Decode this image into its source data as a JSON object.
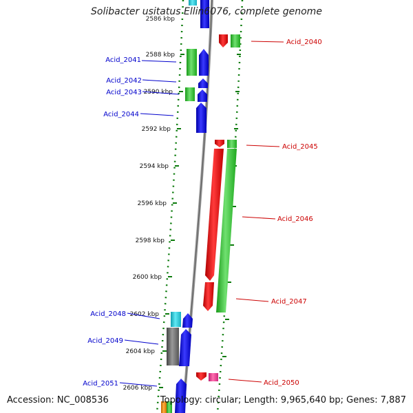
{
  "title": "Solibacter usitatus Ellin6076, complete genome",
  "top_partial_label": "2586 kbp",
  "footer": {
    "accession": "Accession: NC_008536",
    "summary": "Topology: circular; Length: 9,965,640 bp; Genes: 7,887"
  },
  "colors": {
    "red": "#e60000",
    "green": "#2fbf2f",
    "blue": "#0000e6",
    "cyan": "#20c8d8",
    "gray": "#666666",
    "pink": "#e83c8c",
    "orange": "#f08c00",
    "axis": "#888888",
    "tick": "#0a7a0a",
    "label_left": "#0000cc",
    "label_right": "#cc0000"
  },
  "ruler_labels": [
    "2588 kbp",
    "2590 kbp",
    "2592 kbp",
    "2594 kbp",
    "2596 kbp",
    "2598 kbp",
    "2600 kbp",
    "2602 kbp",
    "2604 kbp",
    "2606 kbp"
  ],
  "gene_labels_left": [
    "Acid_2041",
    "Acid_2042",
    "Acid_2043",
    "Acid_2044",
    "Acid_2048",
    "Acid_2049",
    "Acid_2051"
  ],
  "gene_labels_right": [
    "Acid_2040",
    "Acid_2045",
    "Acid_2046",
    "Acid_2047",
    "Acid_2050"
  ]
}
